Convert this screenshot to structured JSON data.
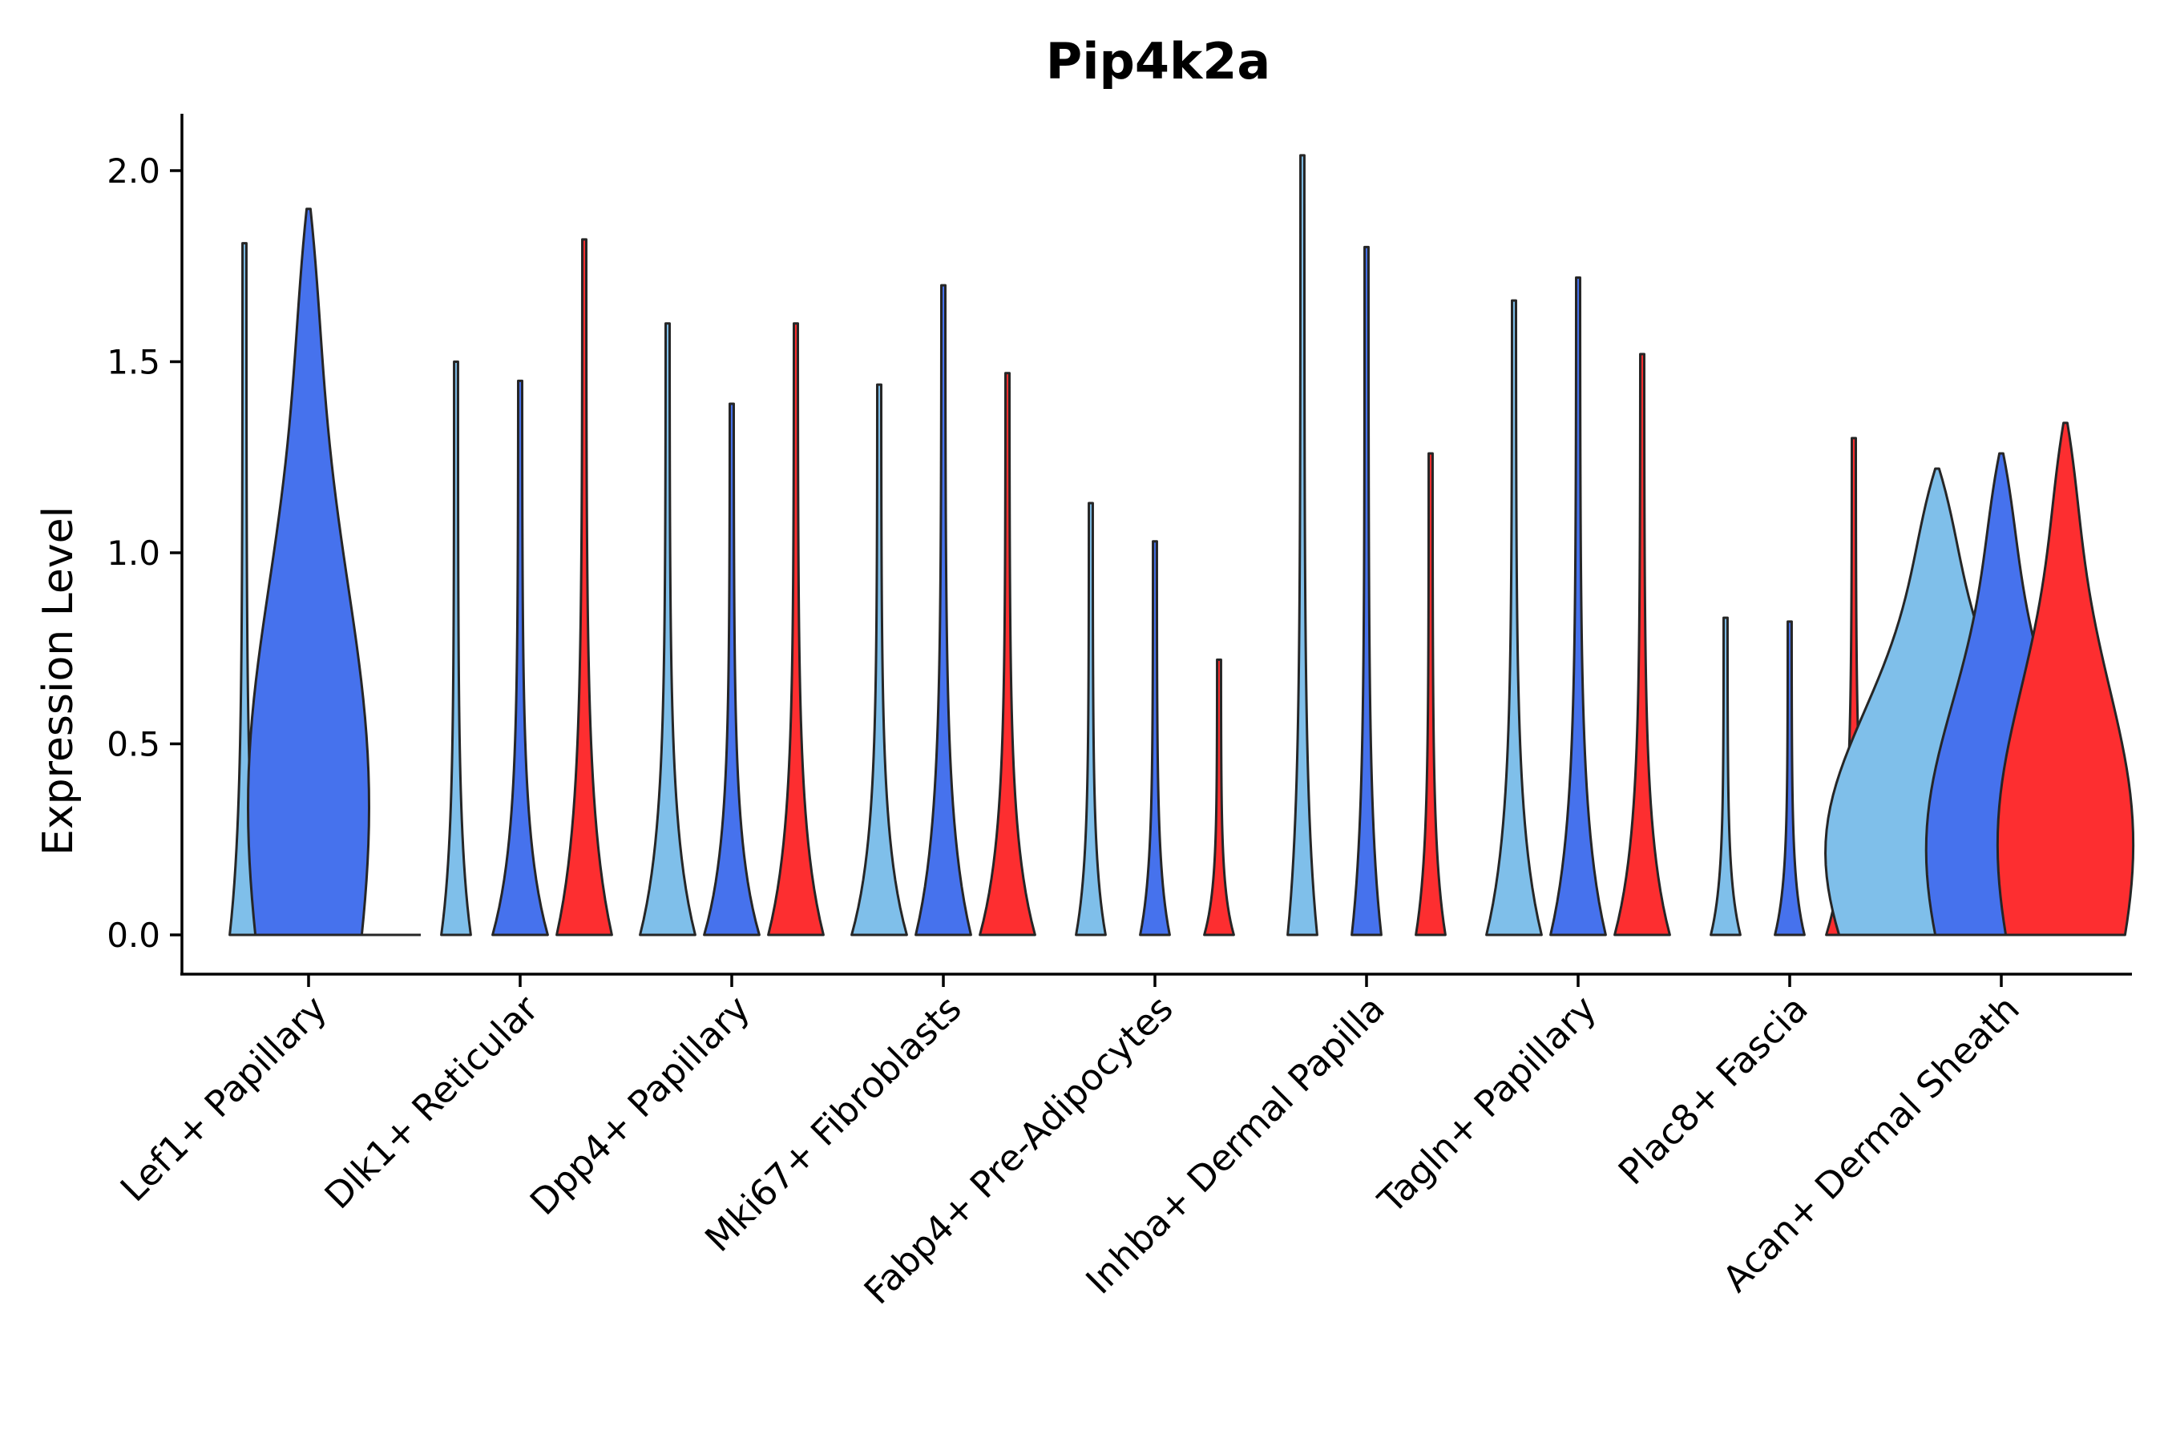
{
  "chart_data": {
    "type": "violin",
    "title": "Pip4k2a",
    "xlabel": "",
    "ylabel": "Expression Level",
    "ylim": [
      -0.1,
      2.15
    ],
    "yticks": [
      "0.0",
      "0.5",
      "1.0",
      "1.5",
      "2.0"
    ],
    "ytick_values": [
      0,
      0.5,
      1.0,
      1.5,
      2.0
    ],
    "grid": false,
    "legend": "none",
    "series_colors": [
      "#7fbfea",
      "#4672ed",
      "#fd2e30"
    ],
    "categories": [
      "Lef1+ Papillary",
      "Dlk1+ Reticular",
      "Dpp4+ Papillary",
      "Mki67+ Fibroblasts",
      "Fabp4+ Pre-Adipocytes",
      "Inhba+ Dermal Papilla",
      "Tagln+ Papillary",
      "Plac8+ Fascia",
      "Acan+ Dermal Sheath"
    ],
    "violins": [
      {
        "category": "Lef1+ Papillary",
        "group": 0,
        "max": 1.81,
        "width": 0.04
      },
      {
        "category": "Lef1+ Papillary",
        "group": 1,
        "max": 1.9,
        "width": 0.16
      },
      {
        "category": "Lef1+ Papillary",
        "group": 2,
        "max": 0,
        "width": 0
      },
      {
        "category": "Dlk1+ Reticular",
        "group": 0,
        "max": 1.5,
        "width": 0.04
      },
      {
        "category": "Dlk1+ Reticular",
        "group": 1,
        "max": 1.45,
        "width": 0.08
      },
      {
        "category": "Dlk1+ Reticular",
        "group": 2,
        "max": 1.82,
        "width": 0.08
      },
      {
        "category": "Dpp4+ Papillary",
        "group": 0,
        "max": 1.6,
        "width": 0.08
      },
      {
        "category": "Dpp4+ Papillary",
        "group": 1,
        "max": 1.39,
        "width": 0.08
      },
      {
        "category": "Dpp4+ Papillary",
        "group": 2,
        "max": 1.6,
        "width": 0.08
      },
      {
        "category": "Mki67+ Fibroblasts",
        "group": 0,
        "max": 1.44,
        "width": 0.08
      },
      {
        "category": "Mki67+ Fibroblasts",
        "group": 1,
        "max": 1.7,
        "width": 0.08
      },
      {
        "category": "Mki67+ Fibroblasts",
        "group": 2,
        "max": 1.47,
        "width": 0.08
      },
      {
        "category": "Fabp4+ Pre-Adipocytes",
        "group": 0,
        "max": 1.13,
        "width": 0.04
      },
      {
        "category": "Fabp4+ Pre-Adipocytes",
        "group": 1,
        "max": 1.03,
        "width": 0.04
      },
      {
        "category": "Fabp4+ Pre-Adipocytes",
        "group": 2,
        "max": 0.72,
        "width": 0.04
      },
      {
        "category": "Inhba+ Dermal Papilla",
        "group": 0,
        "max": 2.04,
        "width": 0.04
      },
      {
        "category": "Inhba+ Dermal Papilla",
        "group": 1,
        "max": 1.8,
        "width": 0.04
      },
      {
        "category": "Inhba+ Dermal Papilla",
        "group": 2,
        "max": 1.26,
        "width": 0.04
      },
      {
        "category": "Tagln+ Papillary",
        "group": 0,
        "max": 1.66,
        "width": 0.08
      },
      {
        "category": "Tagln+ Papillary",
        "group": 1,
        "max": 1.72,
        "width": 0.08
      },
      {
        "category": "Tagln+ Papillary",
        "group": 2,
        "max": 1.52,
        "width": 0.08
      },
      {
        "category": "Plac8+ Fascia",
        "group": 0,
        "max": 0.83,
        "width": 0.04
      },
      {
        "category": "Plac8+ Fascia",
        "group": 1,
        "max": 0.82,
        "width": 0.04
      },
      {
        "category": "Plac8+ Fascia",
        "group": 2,
        "max": 1.3,
        "width": 0.08
      },
      {
        "category": "Acan+ Dermal Sheath",
        "group": 0,
        "max": 1.22,
        "width": 0.3
      },
      {
        "category": "Acan+ Dermal Sheath",
        "group": 1,
        "max": 1.26,
        "width": 0.2
      },
      {
        "category": "Acan+ Dermal Sheath",
        "group": 2,
        "max": 1.34,
        "width": 0.18
      }
    ]
  }
}
